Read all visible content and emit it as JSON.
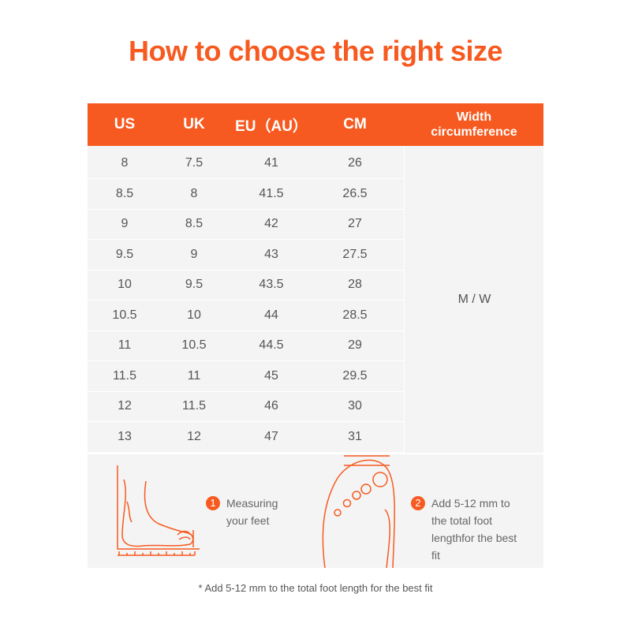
{
  "title": "How to choose the right size",
  "colors": {
    "accent": "#f75a20",
    "table_bg": "#f4f4f4"
  },
  "table": {
    "headers": [
      "US",
      "UK",
      "EU（AU）",
      "CM",
      "Width circumference"
    ],
    "rows": [
      [
        "8",
        "7.5",
        "41",
        "26"
      ],
      [
        "8.5",
        "8",
        "41.5",
        "26.5"
      ],
      [
        "9",
        "8.5",
        "42",
        "27"
      ],
      [
        "9.5",
        "9",
        "43",
        "27.5"
      ],
      [
        "10",
        "9.5",
        "43.5",
        "28"
      ],
      [
        "10.5",
        "10",
        "44",
        "28.5"
      ],
      [
        "11",
        "10.5",
        "44.5",
        "29"
      ],
      [
        "11.5",
        "11",
        "45",
        "29.5"
      ],
      [
        "12",
        "11.5",
        "46",
        "30"
      ],
      [
        "13",
        "12",
        "47",
        "31"
      ]
    ],
    "width_value": "M / W"
  },
  "steps": [
    {
      "number": "1",
      "text": "Measuring your feet",
      "icon": "foot-side-measure-icon"
    },
    {
      "number": "2",
      "text": "Add 5-12 mm to the total foot lengthfor the best fit",
      "icon": "foot-top-measure-icon"
    }
  ],
  "footnote": "* Add 5-12 mm to the total foot length for the best fit"
}
